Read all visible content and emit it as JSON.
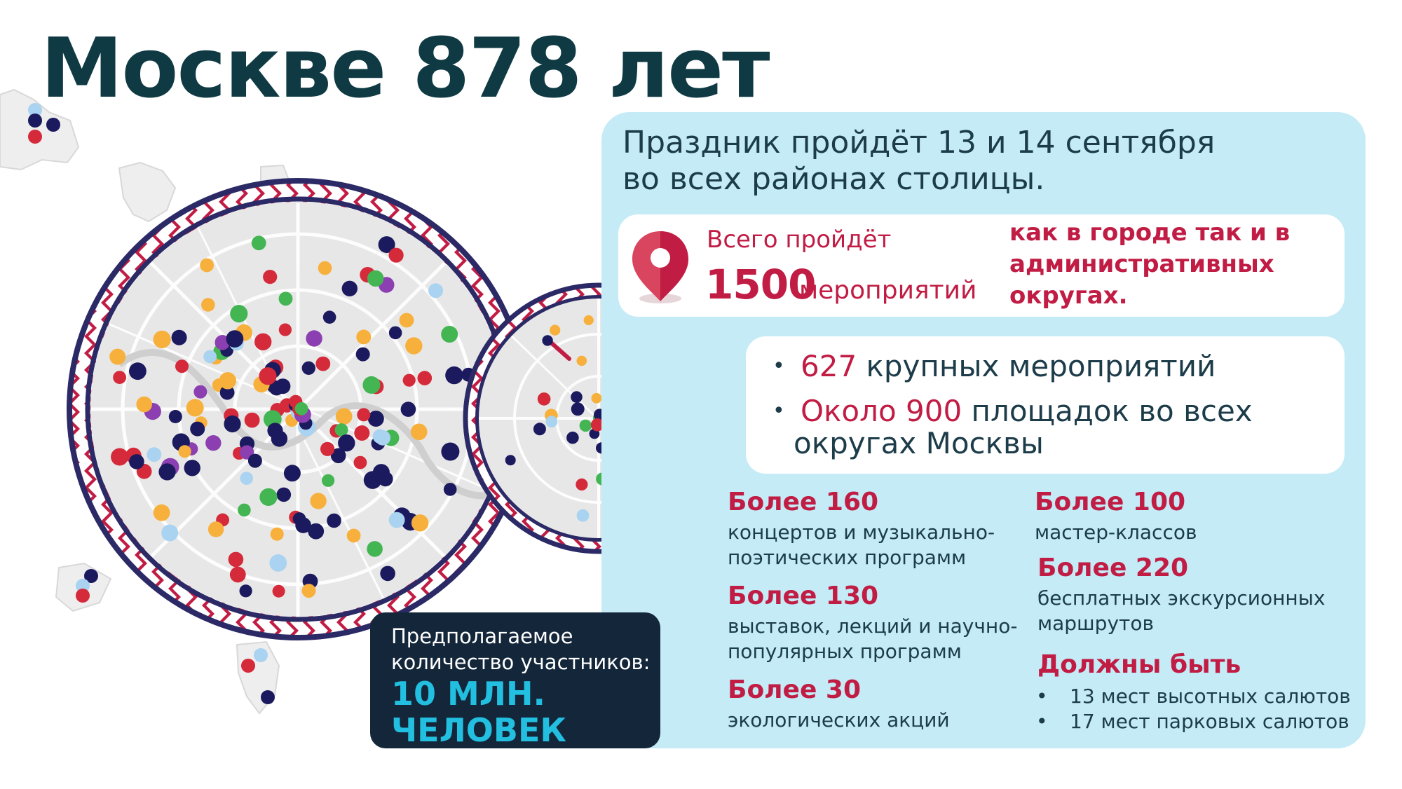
{
  "title": "Москве 878 лет",
  "headline": {
    "line1": "Праздник пройдёт 13 и 14 сентября",
    "line2": "во всех районах столицы."
  },
  "total_events": {
    "label": "Всего пройдёт",
    "number": "1500",
    "unit": "мероприятий",
    "note": "как в городе так и в административных округах.",
    "pin_icon": "location-pin-icon"
  },
  "highlights": [
    {
      "number": "627",
      "text": "крупных мероприятий"
    },
    {
      "number": "Около 900",
      "text": "площадок во всех",
      "text2": "округах Москвы"
    }
  ],
  "stats": [
    {
      "title": "Более 160",
      "desc": "концертов и музыкально-поэтических программ"
    },
    {
      "title": "Более 130",
      "desc": "выставок, лекций и научно-популярных программ"
    },
    {
      "title": "Более 30",
      "desc": "экологических акций"
    },
    {
      "title": "Более 100",
      "desc": "мастер-классов"
    },
    {
      "title": "Более 220",
      "desc": "бесплатных экскурсионных маршрутов"
    }
  ],
  "fireworks": {
    "title": "Должны быть",
    "items": [
      "13 мест высотных салютов",
      "17 мест парковых салютов"
    ]
  },
  "participants": {
    "label": "Предполагаемое количество участников:",
    "value": "10 МЛН. ЧЕЛОВЕК"
  },
  "colors": {
    "accent_red": "#c11c44",
    "dark_teal": "#0f3a43",
    "panel_blue": "#c4ebf6",
    "dark_navy": "#13263a",
    "cyan": "#22bfe0",
    "marker_navy": "#1c1a5e",
    "marker_red": "#d42a3a",
    "marker_green": "#44b553",
    "marker_orange": "#f7b03b",
    "marker_purple": "#8c3fb0",
    "marker_light_blue": "#a9d3f0"
  }
}
